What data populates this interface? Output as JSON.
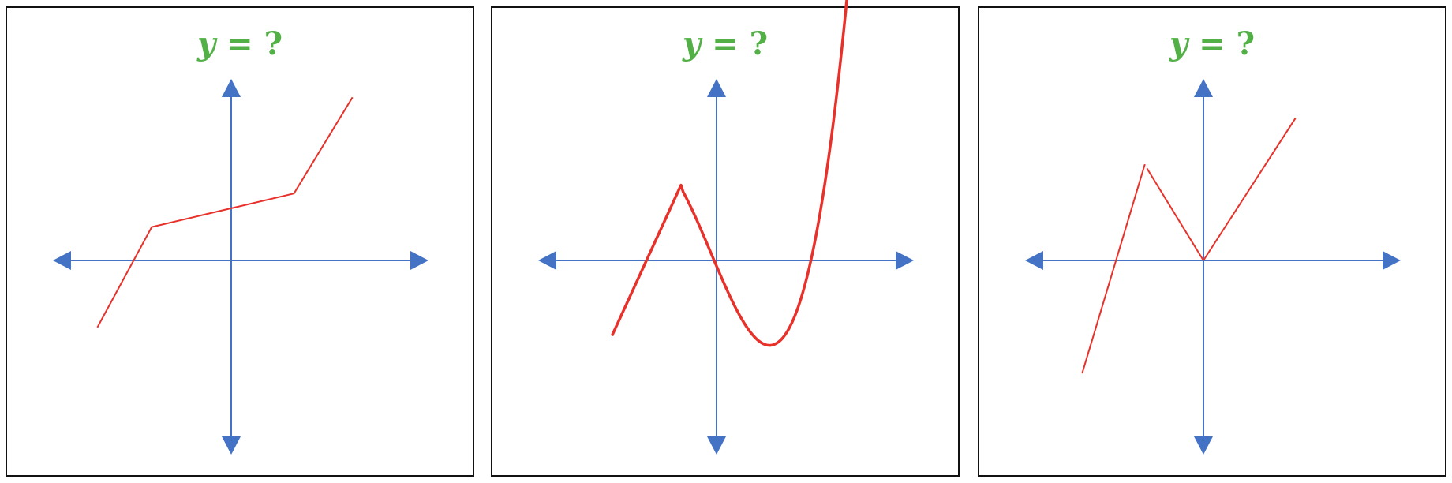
{
  "colors": {
    "axis": "#4472c4",
    "curve": "#e8312a",
    "title": "#52b046",
    "frame": "#111111"
  },
  "panels": [
    {
      "title": {
        "var": "y",
        "rest": " = ?"
      },
      "curve_type": "piecewise-linear",
      "stroke": 2,
      "points": [
        [
          -3.2,
          -1.6
        ],
        [
          -1.9,
          0.8
        ],
        [
          1.5,
          1.6
        ],
        [
          2.9,
          3.9
        ]
      ]
    },
    {
      "title": {
        "var": "y",
        "rest": " = ?"
      },
      "curve_type": "line-then-cubic",
      "stroke": 3.5,
      "points": [
        [
          -2.5,
          -1.8
        ],
        [
          -0.85,
          1.8
        ]
      ],
      "cubic": {
        "x0": -0.85,
        "x1": 3.3,
        "a": 0.4,
        "b": 0.1636,
        "c": -2.3455,
        "d": -0.1345
      }
    },
    {
      "title": {
        "var": "y",
        "rest": " = ?"
      },
      "curve_type": "broken-linear",
      "stroke": 2,
      "segments": [
        [
          [
            -2.9,
            -2.7
          ],
          [
            -1.4,
            2.3
          ]
        ],
        [
          [
            -1.35,
            2.2
          ],
          [
            0,
            0
          ]
        ],
        [
          [
            0,
            0
          ],
          [
            2.2,
            3.4
          ]
        ]
      ]
    }
  ]
}
